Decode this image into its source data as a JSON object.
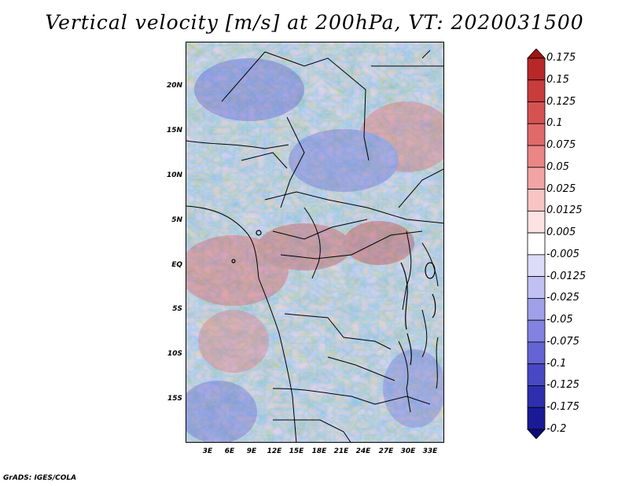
{
  "title": "Vertical velocity [m/s] at 200hPa, VT: 2020031500",
  "credit": "GrADS: IGES/COLA",
  "map": {
    "variable": "Vertical velocity",
    "units": "m/s",
    "level": "200hPa",
    "valid_time": "2020031500",
    "lat_labels": [
      "20N",
      "15N",
      "10N",
      "5N",
      "EQ",
      "5S",
      "10S",
      "15S"
    ],
    "lon_labels": [
      "3E",
      "6E",
      "9E",
      "12E",
      "15E",
      "18E",
      "21E",
      "24E",
      "27E",
      "30E",
      "33E"
    ]
  },
  "colorbar": {
    "levels": [
      "0.175",
      "0.15",
      "0.125",
      "0.1",
      "0.075",
      "0.05",
      "0.025",
      "0.0125",
      "0.005",
      "-0.005",
      "-0.0125",
      "-0.025",
      "-0.05",
      "-0.075",
      "-0.1",
      "-0.125",
      "-0.175",
      "-0.2"
    ],
    "colors": [
      "#a01414",
      "#b82828",
      "#c83c3c",
      "#d65252",
      "#e06a6a",
      "#ea8686",
      "#f2a4a4",
      "#f8c4c4",
      "#fde2e2",
      "#ffffff",
      "#dcdcf8",
      "#c0c0f2",
      "#a0a0ea",
      "#8282e0",
      "#6464d4",
      "#4848c4",
      "#2e2eae",
      "#1a1a96",
      "#0c0c7c"
    ]
  }
}
